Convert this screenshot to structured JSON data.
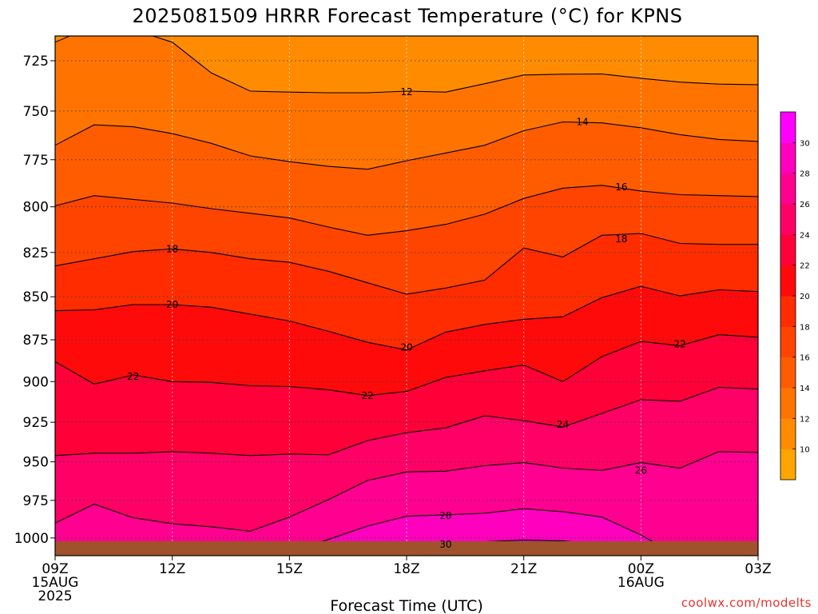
{
  "chart_data": {
    "type": "contour",
    "title": "2025081509 HRRR Forecast Temperature (°C) for KPNS",
    "xlabel": "Forecast Time (UTC)",
    "ylabel": "",
    "yscale": "log",
    "ylim": [
      1012,
      713
    ],
    "xlim": [
      0,
      24
    ],
    "x_ticks": [
      {
        "hour": 0,
        "lines": [
          "09Z",
          "15AUG",
          "2025"
        ]
      },
      {
        "hour": 3,
        "lines": [
          "12Z"
        ]
      },
      {
        "hour": 6,
        "lines": [
          "15Z"
        ]
      },
      {
        "hour": 9,
        "lines": [
          "18Z"
        ]
      },
      {
        "hour": 12,
        "lines": [
          "21Z"
        ]
      },
      {
        "hour": 15,
        "lines": [
          "00Z",
          "16AUG"
        ]
      },
      {
        "hour": 18,
        "lines": [
          "03Z"
        ]
      }
    ],
    "y_ticks": [
      725,
      750,
      775,
      800,
      825,
      850,
      875,
      900,
      925,
      950,
      975,
      1000
    ],
    "grid": true,
    "colorbar": {
      "levels": [
        8,
        10,
        12,
        14,
        16,
        18,
        20,
        22,
        24,
        26,
        28,
        30,
        32
      ],
      "tick_labels": [
        10,
        12,
        14,
        16,
        18,
        20,
        22,
        24,
        26,
        28,
        30
      ],
      "colors": [
        "#ffa500",
        "#ff8c00",
        "#ff7400",
        "#ff5c00",
        "#ff4400",
        "#ff2c00",
        "#ff0a0a",
        "#ff0038",
        "#ff0066",
        "#ff0090",
        "#ff00bf",
        "#ff00ff"
      ]
    },
    "hours": [
      0,
      1,
      2,
      3,
      4,
      5,
      6,
      7,
      8,
      9,
      10,
      11,
      12,
      13,
      14,
      15,
      16,
      17,
      18
    ],
    "contours": [
      {
        "level": 12,
        "pressures": [
          716,
          708,
          710,
          716,
          731,
          740,
          740.5,
          740.8,
          740.8,
          740,
          740.5,
          736.3,
          732,
          731.6,
          731.5,
          733.6,
          735.5,
          736.5,
          736.8
        ]
      },
      {
        "level": 14,
        "pressures": [
          767.5,
          757,
          758,
          761.5,
          766.5,
          773,
          776,
          778.5,
          780,
          775.5,
          771.5,
          767.5,
          760,
          755.5,
          756,
          758.5,
          762,
          764.5,
          765.5
        ]
      },
      {
        "level": 16,
        "pressures": [
          799.5,
          794,
          796,
          798,
          801,
          803.5,
          806,
          811,
          815.5,
          813,
          809.5,
          804,
          795.5,
          790,
          788.5,
          791.5,
          793.5,
          794,
          794.5
        ]
      },
      {
        "level": 18,
        "pressures": [
          832.5,
          828.5,
          824.5,
          823,
          825,
          828.5,
          830.5,
          835.5,
          842,
          848.5,
          845,
          840.5,
          822.5,
          827.5,
          815.5,
          814.5,
          820,
          820.5,
          820.5
        ]
      },
      {
        "level": 20,
        "pressures": [
          858,
          857.5,
          854.5,
          854.5,
          856,
          860,
          864,
          870,
          876.5,
          881,
          870.5,
          866,
          863,
          861.5,
          850.5,
          844,
          849.5,
          846,
          847
        ]
      },
      {
        "level": 22,
        "pressures": [
          888,
          901.5,
          896,
          900,
          900.5,
          902.5,
          903,
          905,
          908.5,
          906,
          897.5,
          893.5,
          890,
          900,
          885,
          876,
          878.5,
          872,
          873.5
        ]
      },
      {
        "level": 24,
        "pressures": [
          946,
          944.5,
          944.5,
          943.5,
          944.5,
          946,
          945,
          945.5,
          936.5,
          931.5,
          928.5,
          921,
          924,
          928,
          919.5,
          911,
          912,
          903.5,
          904.5
        ]
      },
      {
        "level": 26,
        "pressures": [
          990,
          977.5,
          986.5,
          990.5,
          992.5,
          995.5,
          986,
          974.5,
          962,
          956.5,
          956,
          952.5,
          950.5,
          954,
          955.5,
          950.5,
          954,
          943.5,
          944
        ]
      },
      {
        "level": 28,
        "pressures": [
          1014,
          1009,
          1011,
          1012,
          1016,
          1017,
          1010,
          1001,
          992,
          985.5,
          984.5,
          983.5,
          980.5,
          982.5,
          986,
          998,
          1013,
          1022,
          1025
        ]
      },
      {
        "level": 30,
        "pressures": [
          1030,
          1030,
          1030,
          1030,
          1030,
          1030,
          1027,
          1018,
          1010,
          1006,
          1004,
          1002.5,
          1001.5,
          1002,
          1004.5,
          1009,
          1028,
          1035,
          1040
        ]
      }
    ],
    "labels": [
      {
        "level": 12,
        "hour": 9,
        "pressure": 740.5
      },
      {
        "level": 14,
        "hour": 13.5,
        "pressure": 755.5
      },
      {
        "level": 16,
        "hour": 14.5,
        "pressure": 789.5
      },
      {
        "level": 18,
        "hour": 3,
        "pressure": 823
      },
      {
        "level": 18,
        "hour": 14.5,
        "pressure": 817.5
      },
      {
        "level": 20,
        "hour": 3,
        "pressure": 854.5
      },
      {
        "level": 20,
        "hour": 9,
        "pressure": 879.5
      },
      {
        "level": 22,
        "hour": 2,
        "pressure": 897
      },
      {
        "level": 22,
        "hour": 8,
        "pressure": 908.5
      },
      {
        "level": 22,
        "hour": 16,
        "pressure": 877.5
      },
      {
        "level": 24,
        "hour": 13,
        "pressure": 926.5
      },
      {
        "level": 26,
        "hour": 15,
        "pressure": 955.5
      },
      {
        "level": 28,
        "hour": 10,
        "pressure": 985
      },
      {
        "level": 30,
        "hour": 10,
        "pressure": 1004.5
      }
    ],
    "surface_color": "#a0522d"
  },
  "credit": "coolwx.com/modelts"
}
